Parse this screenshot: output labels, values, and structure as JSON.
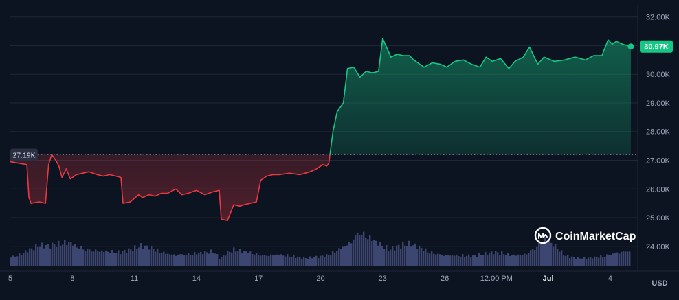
{
  "chart_data": {
    "type": "area",
    "baseline": {
      "value": 27190,
      "label": "27.19K"
    },
    "current": {
      "value": 30970,
      "label": "30.97K"
    },
    "colors": {
      "up": "#16c784",
      "down": "#ea3943",
      "volume": "#3c4670",
      "grid": "#1f2636",
      "background": "#0d1421"
    },
    "y_axis": {
      "range": [
        23300,
        32400
      ],
      "ticks": [
        {
          "value": 24000,
          "label": "24.00K"
        },
        {
          "value": 25000,
          "label": "25.00K"
        },
        {
          "value": 26000,
          "label": "26.00K"
        },
        {
          "value": 27000,
          "label": "27.00K"
        },
        {
          "value": 28000,
          "label": "28.00K"
        },
        {
          "value": 29000,
          "label": "29.00K"
        },
        {
          "value": 30000,
          "label": "30.00K"
        },
        {
          "value": 31000,
          "label": "31.00K"
        },
        {
          "value": 32000,
          "label": "32.00K"
        }
      ]
    },
    "x_axis": {
      "range": [
        0,
        30.2
      ],
      "unit_label": "USD",
      "ticks": [
        {
          "x": 0,
          "label": "5",
          "bold": false
        },
        {
          "x": 3,
          "label": "8",
          "bold": false
        },
        {
          "x": 6,
          "label": "11",
          "bold": false
        },
        {
          "x": 9,
          "label": "14",
          "bold": false
        },
        {
          "x": 12,
          "label": "17",
          "bold": false
        },
        {
          "x": 15,
          "label": "20",
          "bold": false
        },
        {
          "x": 18,
          "label": "23",
          "bold": false
        },
        {
          "x": 21,
          "label": "26",
          "bold": false
        },
        {
          "x": 23.5,
          "label": "12:00 PM",
          "bold": false
        },
        {
          "x": 26,
          "label": "Jul",
          "bold": true
        },
        {
          "x": 29,
          "label": "4",
          "bold": false
        }
      ]
    },
    "price_series": {
      "x": [
        0,
        0.4,
        0.8,
        0.9,
        1.0,
        1.4,
        1.7,
        1.85,
        2.0,
        2.2,
        2.35,
        2.5,
        2.7,
        2.9,
        3.2,
        3.5,
        3.8,
        4.2,
        4.5,
        4.8,
        5.1,
        5.35,
        5.45,
        5.8,
        6.2,
        6.4,
        6.7,
        7.0,
        7.3,
        7.6,
        8.0,
        8.3,
        8.6,
        9.0,
        9.4,
        9.8,
        10.1,
        10.2,
        10.5,
        10.8,
        11.1,
        11.3,
        11.6,
        11.9,
        12.1,
        12.4,
        12.7,
        13.0,
        13.5,
        14.0,
        14.5,
        14.8,
        15.1,
        15.3,
        15.4,
        15.6,
        15.8,
        16.1,
        16.3,
        16.6,
        16.9,
        17.2,
        17.5,
        17.8,
        18.0,
        18.4,
        18.7,
        19.0,
        19.3,
        19.5,
        19.7,
        20.0,
        20.4,
        20.8,
        21.1,
        21.5,
        21.9,
        22.3,
        22.7,
        23.0,
        23.3,
        23.7,
        24.1,
        24.4,
        24.8,
        25.1,
        25.5,
        25.8,
        26.3,
        26.8,
        27.3,
        27.8,
        28.2,
        28.6,
        28.9,
        29.1,
        29.3,
        29.6,
        30.0
      ],
      "y": [
        26950,
        26900,
        26850,
        25700,
        25500,
        25550,
        25500,
        26850,
        27200,
        27000,
        26800,
        26400,
        26700,
        26350,
        26500,
        26550,
        26600,
        26500,
        26450,
        26500,
        26450,
        26400,
        25500,
        25550,
        25800,
        25700,
        25800,
        25750,
        25850,
        25850,
        26000,
        25800,
        25850,
        25950,
        25800,
        25900,
        25950,
        24950,
        24900,
        25450,
        25400,
        25450,
        25500,
        25550,
        26300,
        26450,
        26500,
        26500,
        26550,
        26500,
        26600,
        26700,
        26850,
        26800,
        26900,
        28000,
        28700,
        29000,
        30200,
        30250,
        29900,
        30100,
        30050,
        30100,
        31250,
        30600,
        30700,
        30650,
        30650,
        30500,
        30400,
        30250,
        30400,
        30350,
        30250,
        30450,
        30500,
        30350,
        30250,
        30600,
        30450,
        30550,
        30200,
        30450,
        30600,
        30950,
        30350,
        30600,
        30450,
        30500,
        30600,
        30500,
        30650,
        30650,
        31200,
        31050,
        31150,
        31050,
        30970
      ]
    },
    "volume_series": {
      "x": [
        0,
        0.5,
        0.9,
        1.3,
        1.8,
        2.3,
        2.8,
        3.3,
        3.8,
        4.3,
        4.8,
        5.3,
        5.8,
        6.3,
        6.8,
        7.3,
        7.8,
        8.3,
        8.8,
        9.3,
        9.8,
        10.1,
        10.4,
        10.8,
        11.3,
        11.8,
        12.3,
        12.8,
        13.3,
        13.8,
        14.3,
        14.8,
        15.3,
        15.8,
        16.3,
        16.8,
        17.3,
        17.8,
        18.3,
        18.8,
        19.3,
        19.8,
        20.3,
        20.8,
        21.3,
        21.8,
        22.3,
        22.8,
        23.3,
        23.8,
        24.3,
        24.8,
        25.3,
        25.8,
        26.3,
        26.8,
        27.3,
        27.8,
        28.3,
        28.8,
        29.3,
        29.8,
        30.0
      ],
      "y": [
        0.25,
        0.35,
        0.45,
        0.55,
        0.55,
        0.6,
        0.65,
        0.52,
        0.45,
        0.42,
        0.4,
        0.38,
        0.45,
        0.55,
        0.5,
        0.38,
        0.32,
        0.33,
        0.35,
        0.37,
        0.4,
        0.2,
        0.35,
        0.45,
        0.4,
        0.35,
        0.3,
        0.32,
        0.3,
        0.25,
        0.22,
        0.25,
        0.3,
        0.45,
        0.6,
        0.95,
        0.8,
        0.6,
        0.45,
        0.55,
        0.6,
        0.5,
        0.38,
        0.32,
        0.3,
        0.3,
        0.28,
        0.32,
        0.38,
        0.35,
        0.3,
        0.32,
        0.5,
        0.75,
        0.55,
        0.28,
        0.22,
        0.22,
        0.25,
        0.3,
        0.38,
        0.42,
        0.42
      ]
    }
  },
  "watermark": {
    "brand": "CoinMarketCap",
    "icon": "coinmarketcap-logo-icon"
  }
}
